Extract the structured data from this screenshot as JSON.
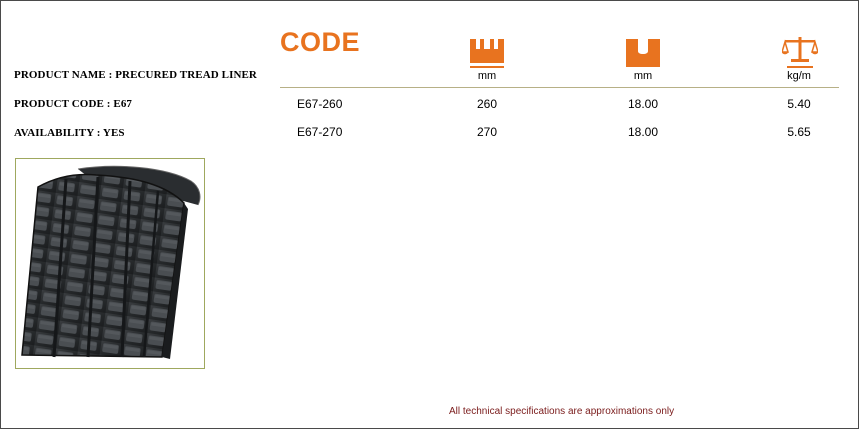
{
  "product": {
    "name_label": "PRODUCT NAME  : PRECURED  TREAD  LINER",
    "code_label": "PRODUCT CODE : E67",
    "availability_label": "AVAILABILITY   : YES"
  },
  "header": {
    "code_title": "CODE",
    "columns": [
      {
        "icon": "tread-width-icon",
        "unit": "mm"
      },
      {
        "icon": "tread-depth-icon",
        "unit": "mm"
      },
      {
        "icon": "weight-scale-icon",
        "unit": "kg/m"
      }
    ]
  },
  "rows": [
    {
      "code": "E67-260",
      "width": "260",
      "depth": "18.00",
      "weight": "5.40"
    },
    {
      "code": "E67-270",
      "width": "270",
      "depth": "18.00",
      "weight": "5.65"
    }
  ],
  "colors": {
    "accent": "#e8731f",
    "rule": "#b7b086",
    "note": "#7a1b1b",
    "image_border": "#9fa85e"
  },
  "image": {
    "subject": "tread-liner-photo"
  },
  "footer": {
    "note": "All technical specifications are approximations only"
  }
}
